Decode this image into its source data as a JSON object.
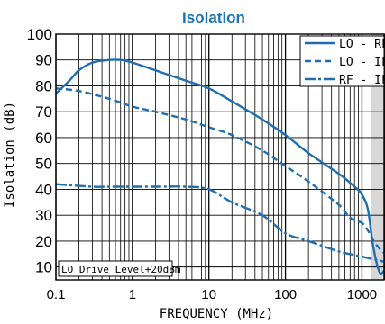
{
  "chart_data": {
    "type": "line",
    "title": "Isolation",
    "xlabel": "FREQUENCY (MHz)",
    "ylabel": "Isolation (dB)",
    "xscale": "log",
    "xlim": [
      0.1,
      2000
    ],
    "ylim": [
      5,
      100
    ],
    "x_ticks": [
      {
        "value": 0.1,
        "label": "0.1"
      },
      {
        "value": 1,
        "label": "1"
      },
      {
        "value": 10,
        "label": "10"
      },
      {
        "value": 100,
        "label": "100"
      },
      {
        "value": 1000,
        "label": "1000"
      }
    ],
    "y_ticks": [
      10,
      20,
      30,
      40,
      50,
      60,
      70,
      80,
      90,
      100
    ],
    "grid": true,
    "shaded_region_x": [
      1300,
      2000
    ],
    "legend_position": "top-right",
    "annotation": "LO Drive Level+20dBm",
    "colors": {
      "title": "#1a73b5",
      "series": "#1f6fb0",
      "shade": "#d8d8d8",
      "grid": "#000000"
    },
    "series": [
      {
        "name": "LO - RF",
        "style": "solid",
        "x": [
          0.1,
          0.15,
          0.2,
          0.3,
          0.5,
          0.7,
          1,
          2,
          5,
          10,
          20,
          50,
          100,
          200,
          500,
          800,
          1000,
          1200,
          1400,
          1700,
          2000
        ],
        "y": [
          77,
          82,
          86,
          89,
          90,
          90,
          89,
          86,
          82,
          79,
          74,
          67,
          61,
          54,
          46,
          41,
          38,
          32,
          18,
          8,
          9
        ]
      },
      {
        "name": "LO - IF",
        "style": "dashed",
        "x": [
          0.1,
          0.2,
          0.5,
          1,
          2,
          5,
          10,
          20,
          50,
          100,
          200,
          500,
          700,
          1000,
          1200,
          1500,
          2000
        ],
        "y": [
          79,
          78,
          75,
          72,
          70,
          67,
          64,
          61,
          55,
          49,
          43,
          34,
          29,
          27,
          24,
          19,
          15
        ]
      },
      {
        "name": "RF - IF",
        "style": "dashdot",
        "x": [
          0.1,
          0.3,
          0.5,
          1,
          2,
          5,
          10,
          20,
          50,
          100,
          200,
          500,
          1000,
          1400,
          2000
        ],
        "y": [
          42,
          41,
          41,
          41,
          41,
          41,
          40,
          35,
          30,
          23,
          20,
          16,
          14,
          13,
          12
        ]
      }
    ]
  }
}
